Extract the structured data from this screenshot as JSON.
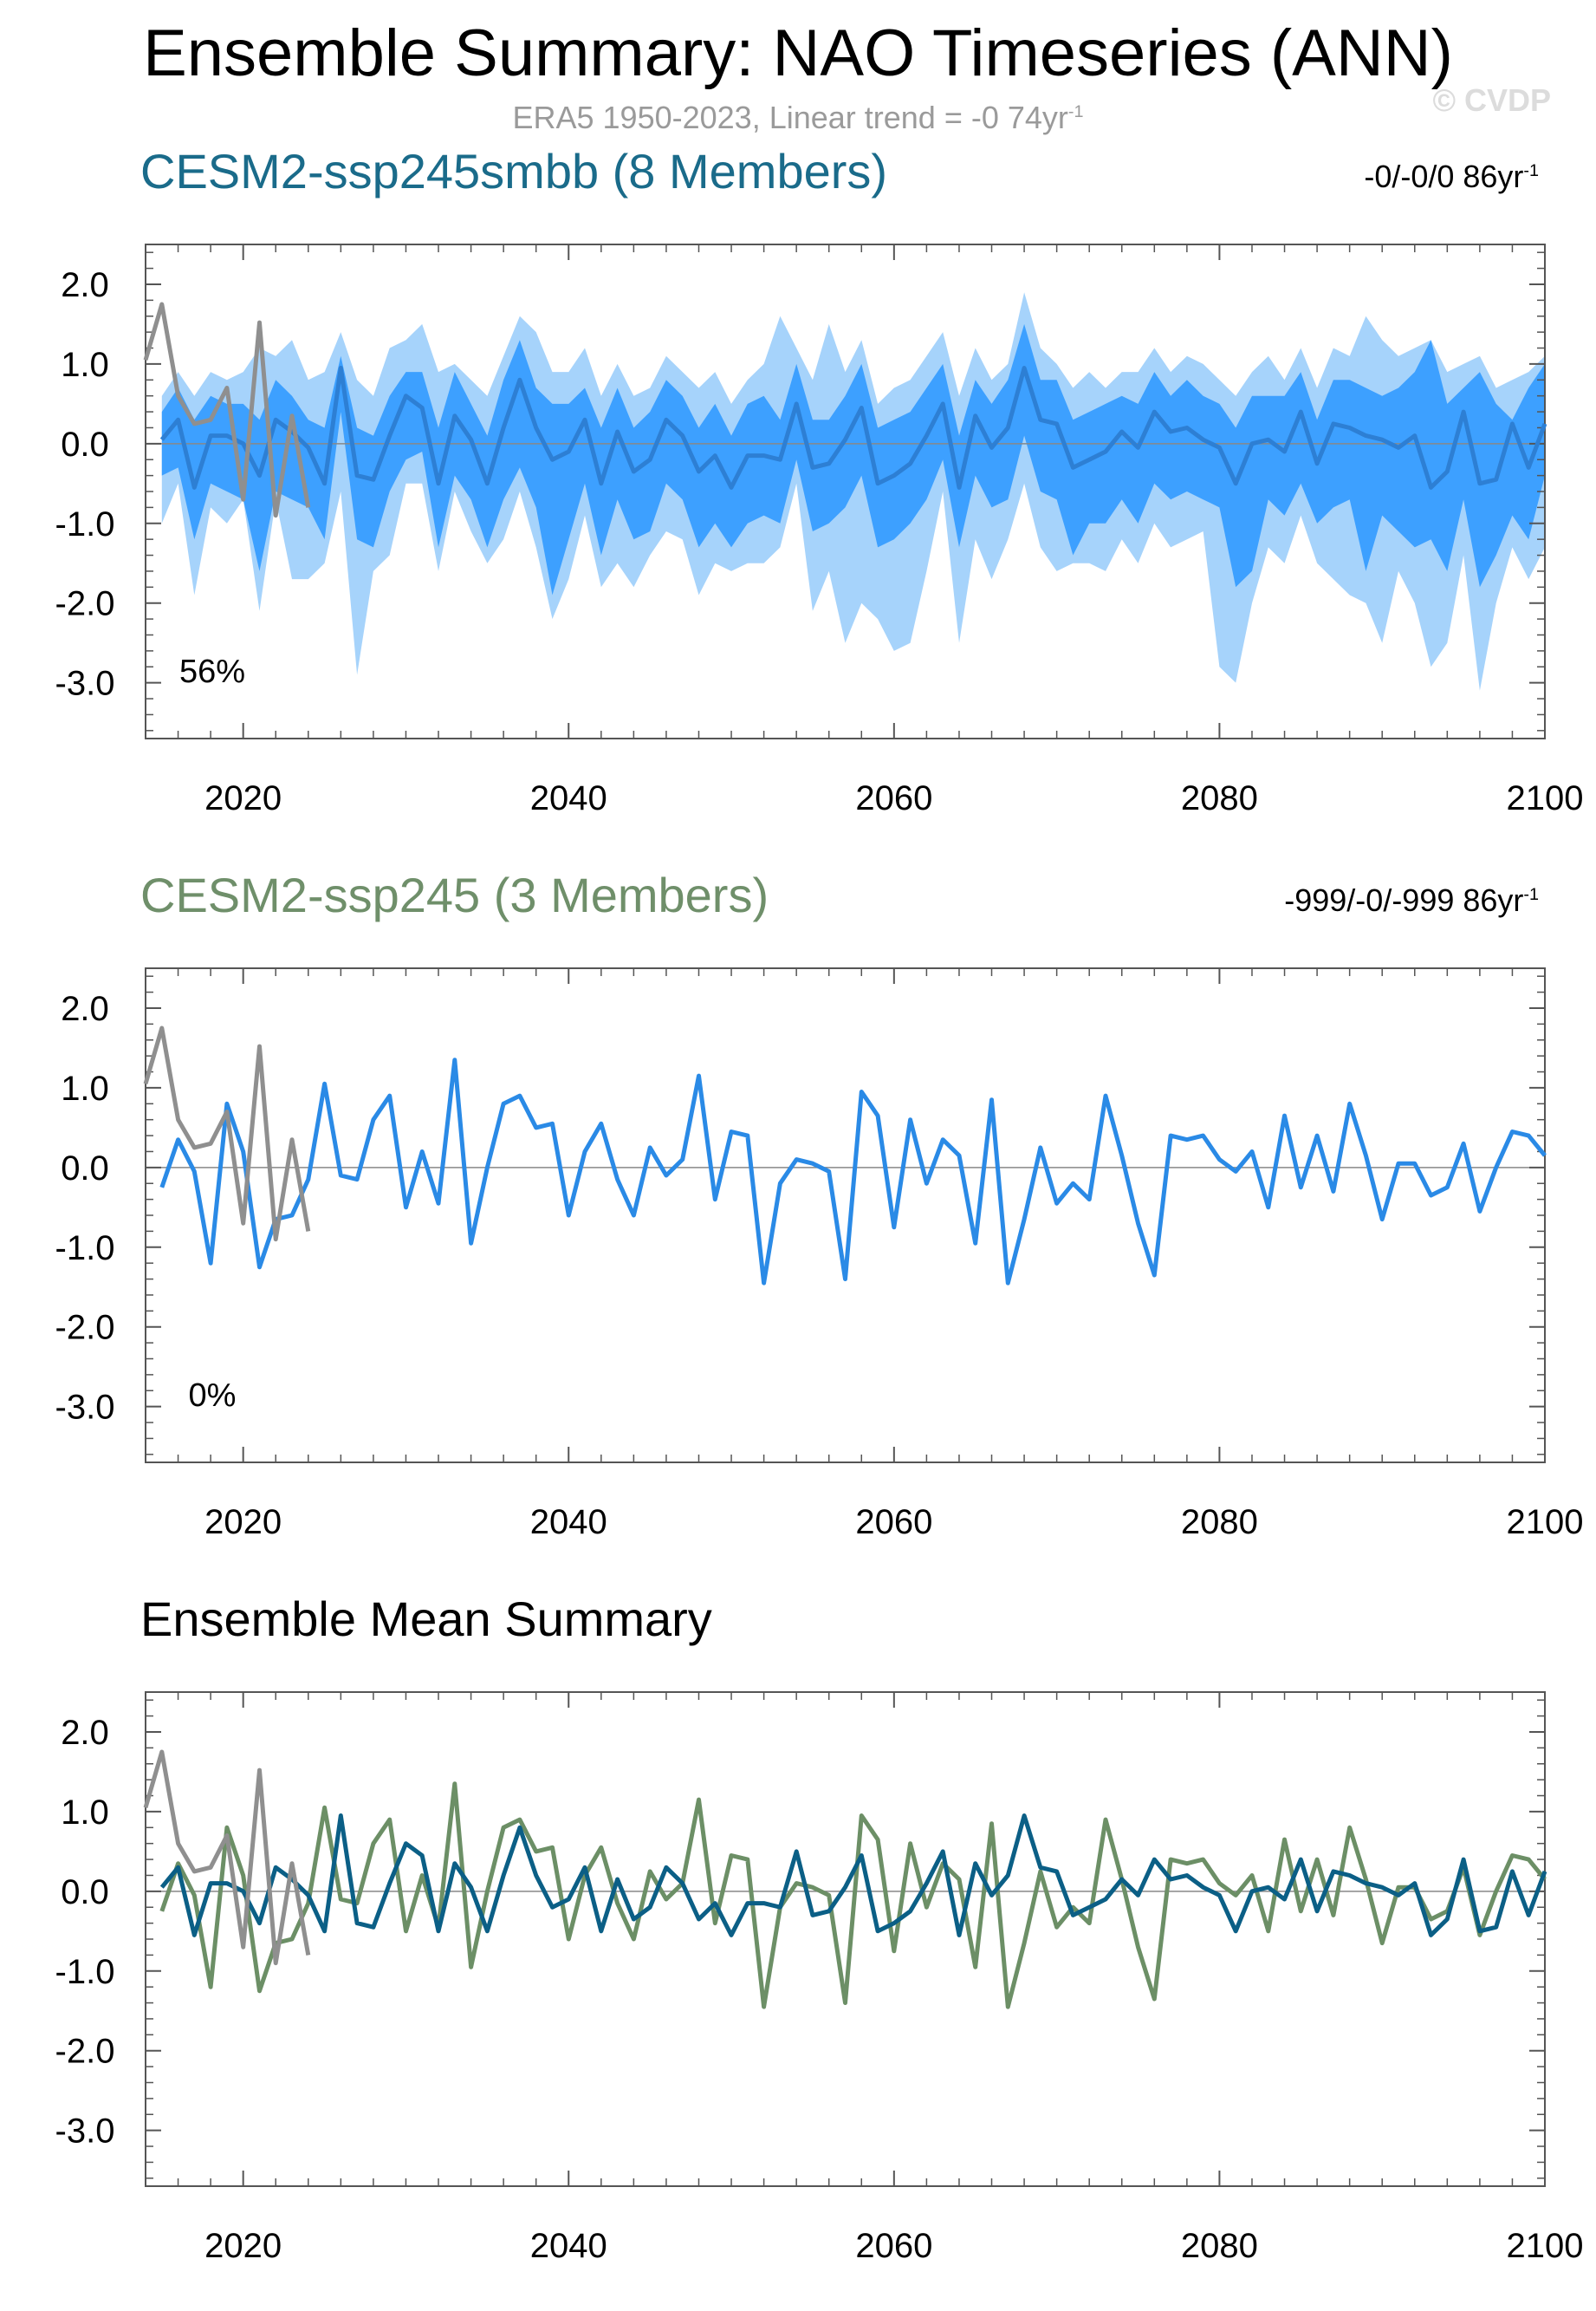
{
  "figure": {
    "title": "Ensemble Summary: NAO Timeseries (ANN)",
    "subtitle_main": "ERA5 1950-2023, Linear trend = -0 74yr",
    "subtitle_sup": "-1",
    "watermark": "© CVDP"
  },
  "colors": {
    "obs": "#8f8f8f",
    "smbb_mean": "#2d7fd4",
    "smbb_inner": "#3da0ff",
    "smbb_outer": "#a6d3fb",
    "ssp245_line": "#2a8ae6",
    "mean_smbb": "#0b5f86",
    "mean_ssp245": "#6c8f66",
    "title_smbb": "#1a6b8a",
    "title_ssp245": "#6f8f6a"
  },
  "chart_data": [
    {
      "type": "area",
      "title": "CESM2-ssp245smbb (8 Members)",
      "trend_text": "-0/-0/0 86yr",
      "trend_sup": "-1",
      "percent_label": "56%",
      "xlim": [
        2014,
        2100
      ],
      "ylim": [
        -3.7,
        2.5
      ],
      "x_ticks": [
        2020,
        2040,
        2060,
        2080,
        2100
      ],
      "y_ticks": [
        2.0,
        1.0,
        0.0,
        -1.0,
        -2.0,
        -3.0
      ],
      "x_tick_labels": [
        "2020",
        "2040",
        "2060",
        "2080",
        "2100"
      ],
      "y_tick_labels": [
        "2.0",
        "1.0",
        "0.0",
        "-1.0",
        "-2.0",
        "-3.0"
      ],
      "x_start": 2015,
      "obs_x_start": 2014,
      "obs": [
        1.05,
        1.75,
        0.6,
        0.25,
        0.3,
        0.7,
        -0.7,
        1.52,
        -0.9,
        0.35,
        -0.8
      ],
      "series": [
        {
          "name": "ensemble mean",
          "values": [
            0.05,
            0.3,
            -0.55,
            0.1,
            0.1,
            0.0,
            -0.4,
            0.3,
            0.15,
            -0.05,
            -0.5,
            0.95,
            -0.4,
            -0.45,
            0.1,
            0.6,
            0.45,
            -0.5,
            0.35,
            0.05,
            -0.5,
            0.2,
            0.8,
            0.2,
            -0.2,
            -0.1,
            0.3,
            -0.5,
            0.15,
            -0.35,
            -0.2,
            0.3,
            0.1,
            -0.35,
            -0.15,
            -0.55,
            -0.15,
            -0.15,
            -0.2,
            0.5,
            -0.3,
            -0.25,
            0.05,
            0.45,
            -0.5,
            -0.4,
            -0.25,
            0.1,
            0.5,
            -0.55,
            0.35,
            -0.05,
            0.2,
            0.95,
            0.3,
            0.25,
            -0.3,
            -0.2,
            -0.1,
            0.15,
            -0.05,
            0.4,
            0.15,
            0.2,
            0.05,
            -0.05,
            -0.5,
            0.0,
            0.05,
            -0.1,
            0.4,
            -0.25,
            0.25,
            0.2,
            0.1,
            0.05,
            -0.05,
            0.1,
            -0.55,
            -0.35,
            0.4,
            -0.5,
            -0.45,
            0.25,
            -0.3,
            0.25
          ]
        },
        {
          "name": "inner band upper",
          "values": [
            0.4,
            0.7,
            0.3,
            0.6,
            0.5,
            0.5,
            0.3,
            0.8,
            0.6,
            0.3,
            0.2,
            1.1,
            0.2,
            0.1,
            0.6,
            0.9,
            0.9,
            0.2,
            0.9,
            0.5,
            0.1,
            0.8,
            1.3,
            0.7,
            0.5,
            0.5,
            0.7,
            0.2,
            0.7,
            0.2,
            0.4,
            0.8,
            0.6,
            0.2,
            0.5,
            0.1,
            0.5,
            0.6,
            0.3,
            1.0,
            0.3,
            0.3,
            0.6,
            1.0,
            0.2,
            0.3,
            0.4,
            0.7,
            1.0,
            0.1,
            0.8,
            0.5,
            0.8,
            1.5,
            0.8,
            0.8,
            0.3,
            0.4,
            0.5,
            0.6,
            0.5,
            0.9,
            0.6,
            0.8,
            0.6,
            0.5,
            0.2,
            0.6,
            0.6,
            0.6,
            0.9,
            0.3,
            0.8,
            0.8,
            0.7,
            0.6,
            0.7,
            0.9,
            1.3,
            0.5,
            0.7,
            0.9,
            0.5,
            0.3,
            0.7,
            1.0
          ]
        },
        {
          "name": "inner band lower",
          "values": [
            -0.4,
            -0.3,
            -1.2,
            -0.5,
            -0.6,
            -0.7,
            -1.6,
            -0.6,
            -0.7,
            -0.8,
            -1.2,
            0.4,
            -1.2,
            -1.3,
            -0.6,
            -0.2,
            -0.1,
            -1.3,
            -0.4,
            -0.7,
            -1.3,
            -0.7,
            -0.3,
            -0.8,
            -1.9,
            -1.2,
            -0.5,
            -1.4,
            -0.7,
            -1.2,
            -1.1,
            -0.5,
            -0.7,
            -1.3,
            -1.0,
            -1.3,
            -1.0,
            -0.9,
            -1.0,
            -0.2,
            -1.1,
            -1.0,
            -0.8,
            -0.4,
            -1.3,
            -1.2,
            -1.0,
            -0.7,
            -0.2,
            -1.3,
            -0.4,
            -0.8,
            -0.7,
            0.1,
            -0.6,
            -0.7,
            -1.4,
            -1.0,
            -1.0,
            -0.7,
            -1.0,
            -0.5,
            -0.7,
            -0.6,
            -0.7,
            -0.8,
            -1.8,
            -1.6,
            -0.7,
            -0.9,
            -0.5,
            -1.0,
            -0.8,
            -0.7,
            -1.6,
            -0.9,
            -1.1,
            -1.3,
            -1.2,
            -1.6,
            -0.7,
            -1.8,
            -1.4,
            -0.9,
            -1.2,
            -0.4
          ]
        },
        {
          "name": "outer band upper",
          "values": [
            0.6,
            0.9,
            0.6,
            0.9,
            0.8,
            0.9,
            1.2,
            1.1,
            1.3,
            0.8,
            0.9,
            1.4,
            0.8,
            0.6,
            1.2,
            1.3,
            1.5,
            0.9,
            1.0,
            0.8,
            0.6,
            1.1,
            1.6,
            1.4,
            0.9,
            0.9,
            1.2,
            0.6,
            1.0,
            0.6,
            0.7,
            1.1,
            0.9,
            0.7,
            0.9,
            0.5,
            0.8,
            1.0,
            1.6,
            1.2,
            0.8,
            1.5,
            0.9,
            1.3,
            0.5,
            0.7,
            0.8,
            1.1,
            1.4,
            0.6,
            1.2,
            0.8,
            1.0,
            1.9,
            1.2,
            1.0,
            0.7,
            0.9,
            0.7,
            0.9,
            0.9,
            1.2,
            0.9,
            1.1,
            1.0,
            0.8,
            0.6,
            0.9,
            1.1,
            0.8,
            1.2,
            0.7,
            1.2,
            1.1,
            1.6,
            1.3,
            1.1,
            1.2,
            1.3,
            0.9,
            1.0,
            1.1,
            0.7,
            0.8,
            0.9,
            1.1
          ]
        },
        {
          "name": "outer band lower",
          "values": [
            -1.0,
            -0.5,
            -1.9,
            -0.8,
            -1.0,
            -0.7,
            -2.1,
            -0.7,
            -1.7,
            -1.7,
            -1.5,
            -0.6,
            -2.9,
            -1.6,
            -1.4,
            -0.5,
            -0.5,
            -1.6,
            -0.6,
            -1.1,
            -1.5,
            -1.2,
            -0.6,
            -1.3,
            -2.2,
            -1.7,
            -0.9,
            -1.8,
            -1.5,
            -1.8,
            -1.4,
            -1.1,
            -1.2,
            -1.9,
            -1.5,
            -1.6,
            -1.5,
            -1.5,
            -1.3,
            -0.5,
            -2.1,
            -1.6,
            -2.5,
            -2.0,
            -2.2,
            -2.6,
            -2.5,
            -1.6,
            -0.6,
            -2.5,
            -1.2,
            -1.7,
            -1.2,
            -0.5,
            -1.3,
            -1.6,
            -1.5,
            -1.5,
            -1.6,
            -1.2,
            -1.5,
            -1.0,
            -1.3,
            -1.2,
            -1.1,
            -2.8,
            -3.0,
            -2.0,
            -1.3,
            -1.5,
            -0.9,
            -1.5,
            -1.7,
            -1.9,
            -2.0,
            -2.5,
            -1.6,
            -2.0,
            -2.8,
            -2.5,
            -1.4,
            -3.1,
            -2.0,
            -1.3,
            -1.7,
            -1.3
          ]
        }
      ]
    },
    {
      "type": "line",
      "title": "CESM2-ssp245 (3 Members)",
      "trend_text": "-999/-0/-999 86yr",
      "trend_sup": "-1",
      "percent_label": "0%",
      "xlim": [
        2014,
        2100
      ],
      "ylim": [
        -3.7,
        2.5
      ],
      "x_ticks": [
        2020,
        2040,
        2060,
        2080,
        2100
      ],
      "y_ticks": [
        2.0,
        1.0,
        0.0,
        -1.0,
        -2.0,
        -3.0
      ],
      "x_tick_labels": [
        "2020",
        "2040",
        "2060",
        "2080",
        "2100"
      ],
      "y_tick_labels": [
        "2.0",
        "1.0",
        "0.0",
        "-1.0",
        "-2.0",
        "-3.0"
      ],
      "x_start": 2015,
      "obs_x_start": 2014,
      "obs": [
        1.05,
        1.75,
        0.6,
        0.25,
        0.3,
        0.7,
        -0.7,
        1.52,
        -0.9,
        0.35,
        -0.8
      ],
      "series": [
        {
          "name": "ensemble mean",
          "values": [
            -0.25,
            0.35,
            -0.05,
            -1.2,
            0.8,
            0.2,
            -1.25,
            -0.65,
            -0.6,
            -0.15,
            1.05,
            -0.1,
            -0.15,
            0.6,
            0.9,
            -0.5,
            0.2,
            -0.45,
            1.35,
            -0.95,
            0.0,
            0.8,
            0.9,
            0.5,
            0.55,
            -0.6,
            0.2,
            0.55,
            -0.15,
            -0.6,
            0.25,
            -0.1,
            0.1,
            1.15,
            -0.4,
            0.45,
            0.4,
            -1.45,
            -0.2,
            0.1,
            0.05,
            -0.05,
            -1.4,
            0.95,
            0.65,
            -0.75,
            0.6,
            -0.2,
            0.35,
            0.15,
            -0.95,
            0.85,
            -1.45,
            -0.65,
            0.25,
            -0.45,
            -0.2,
            -0.4,
            0.9,
            0.15,
            -0.7,
            -1.35,
            0.4,
            0.35,
            0.4,
            0.1,
            -0.05,
            0.2,
            -0.5,
            0.65,
            -0.25,
            0.4,
            -0.3,
            0.8,
            0.15,
            -0.65,
            0.05,
            0.05,
            -0.35,
            -0.25,
            0.3,
            -0.55,
            0.0,
            0.45,
            0.4,
            0.15
          ]
        }
      ]
    },
    {
      "type": "line",
      "title": "Ensemble Mean Summary",
      "xlim": [
        2014,
        2100
      ],
      "ylim": [
        -3.7,
        2.5
      ],
      "x_ticks": [
        2020,
        2040,
        2060,
        2080,
        2100
      ],
      "y_ticks": [
        2.0,
        1.0,
        0.0,
        -1.0,
        -2.0,
        -3.0
      ],
      "x_tick_labels": [
        "2020",
        "2040",
        "2060",
        "2080",
        "2100"
      ],
      "y_tick_labels": [
        "2.0",
        "1.0",
        "0.0",
        "-1.0",
        "-2.0",
        "-3.0"
      ],
      "x_start": 2015,
      "obs_x_start": 2014,
      "obs": [
        1.05,
        1.75,
        0.6,
        0.25,
        0.3,
        0.7,
        -0.7,
        1.52,
        -0.9,
        0.35,
        -0.8
      ],
      "series": [
        {
          "name": "CESM2-ssp245 mean",
          "values": [
            -0.25,
            0.35,
            -0.05,
            -1.2,
            0.8,
            0.2,
            -1.25,
            -0.65,
            -0.6,
            -0.15,
            1.05,
            -0.1,
            -0.15,
            0.6,
            0.9,
            -0.5,
            0.2,
            -0.45,
            1.35,
            -0.95,
            0.0,
            0.8,
            0.9,
            0.5,
            0.55,
            -0.6,
            0.2,
            0.55,
            -0.15,
            -0.6,
            0.25,
            -0.1,
            0.1,
            1.15,
            -0.4,
            0.45,
            0.4,
            -1.45,
            -0.2,
            0.1,
            0.05,
            -0.05,
            -1.4,
            0.95,
            0.65,
            -0.75,
            0.6,
            -0.2,
            0.35,
            0.15,
            -0.95,
            0.85,
            -1.45,
            -0.65,
            0.25,
            -0.45,
            -0.2,
            -0.4,
            0.9,
            0.15,
            -0.7,
            -1.35,
            0.4,
            0.35,
            0.4,
            0.1,
            -0.05,
            0.2,
            -0.5,
            0.65,
            -0.25,
            0.4,
            -0.3,
            0.8,
            0.15,
            -0.65,
            0.05,
            0.05,
            -0.35,
            -0.25,
            0.3,
            -0.55,
            0.0,
            0.45,
            0.4,
            0.15
          ]
        },
        {
          "name": "CESM2-ssp245smbb mean",
          "values": [
            0.05,
            0.3,
            -0.55,
            0.1,
            0.1,
            0.0,
            -0.4,
            0.3,
            0.15,
            -0.05,
            -0.5,
            0.95,
            -0.4,
            -0.45,
            0.1,
            0.6,
            0.45,
            -0.5,
            0.35,
            0.05,
            -0.5,
            0.2,
            0.8,
            0.2,
            -0.2,
            -0.1,
            0.3,
            -0.5,
            0.15,
            -0.35,
            -0.2,
            0.3,
            0.1,
            -0.35,
            -0.15,
            -0.55,
            -0.15,
            -0.15,
            -0.2,
            0.5,
            -0.3,
            -0.25,
            0.05,
            0.45,
            -0.5,
            -0.4,
            -0.25,
            0.1,
            0.5,
            -0.55,
            0.35,
            -0.05,
            0.2,
            0.95,
            0.3,
            0.25,
            -0.3,
            -0.2,
            -0.1,
            0.15,
            -0.05,
            0.4,
            0.15,
            0.2,
            0.05,
            -0.05,
            -0.5,
            0.0,
            0.05,
            -0.1,
            0.4,
            -0.25,
            0.25,
            0.2,
            0.1,
            0.05,
            -0.05,
            0.1,
            -0.55,
            -0.35,
            0.4,
            -0.5,
            -0.45,
            0.25,
            -0.3,
            0.25
          ]
        }
      ]
    }
  ]
}
